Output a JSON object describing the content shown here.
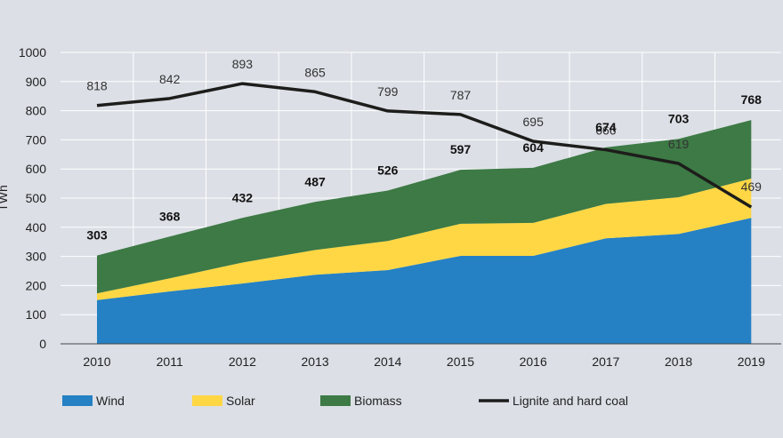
{
  "chart_data": {
    "type": "area",
    "categories": [
      "2010",
      "2011",
      "2012",
      "2013",
      "2014",
      "2015",
      "2016",
      "2017",
      "2018",
      "2019"
    ],
    "ylim": [
      0,
      1000
    ],
    "yticks": [
      "0",
      "100",
      "200",
      "300",
      "400",
      "500",
      "600",
      "700",
      "800",
      "900",
      "1000"
    ],
    "ylabel": "TWh",
    "grid": true,
    "legend_position": "bottom",
    "stacked": true,
    "series": [
      {
        "name": "Wind",
        "type": "area",
        "color": "#2581c4",
        "values": [
          150,
          180,
          207,
          237,
          253,
          302,
          302,
          362,
          377,
          432
        ]
      },
      {
        "name": "Solar",
        "type": "area",
        "color": "#ffd744",
        "values": [
          23,
          45,
          72,
          85,
          100,
          110,
          113,
          118,
          126,
          135
        ]
      },
      {
        "name": "Biomass",
        "type": "area",
        "color": "#3d7a45",
        "values": [
          130,
          143,
          153,
          165,
          173,
          185,
          189,
          194,
          200,
          201
        ]
      },
      {
        "name": "Lignite and hard coal",
        "type": "line",
        "color": "#1d1d1b",
        "values": [
          818,
          842,
          893,
          865,
          799,
          787,
          695,
          666,
          619,
          469
        ]
      }
    ],
    "total_labels": [
      "303",
      "368",
      "432",
      "487",
      "526",
      "597",
      "604",
      "674",
      "703",
      "768"
    ],
    "coal_labels": [
      "818",
      "842",
      "893",
      "865",
      "799",
      "787",
      "695",
      "666",
      "619",
      "469"
    ]
  }
}
